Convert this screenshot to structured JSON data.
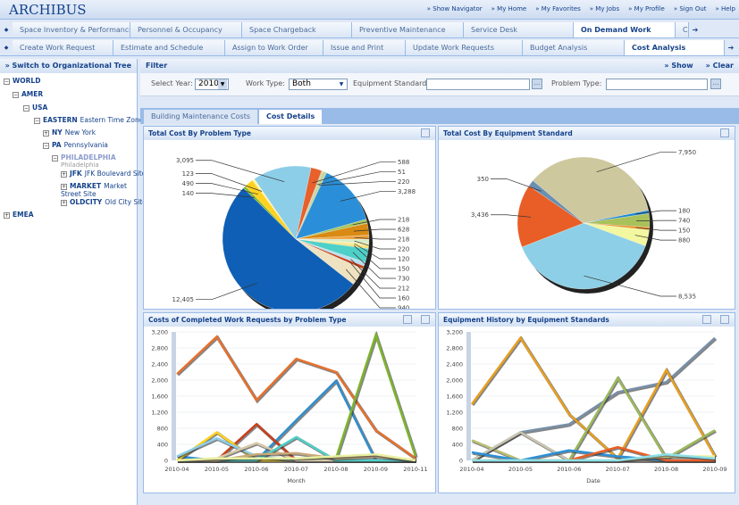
{
  "header": {
    "logo": "ARCHIBUS",
    "links": [
      "» Show Navigator",
      "» My Home",
      "» My Favorites",
      "» My Jobs",
      "» My Profile",
      "» Sign Out",
      "» Help"
    ]
  },
  "nav1": {
    "tabs": [
      "Space Inventory & Performance",
      "Personnel & Occupancy",
      "Space Chargeback",
      "Preventive Maintenance",
      "Service Desk",
      "On Demand Work",
      "C"
    ],
    "active": "On Demand Work"
  },
  "nav2": {
    "tabs": [
      "Create Work Request",
      "Estimate and Schedule",
      "Assign to Work Order",
      "Issue and Print",
      "Update Work Requests",
      "Budget Analysis",
      "Cost Analysis"
    ],
    "active": "Cost Analysis"
  },
  "tree": {
    "switch_label": "» Switch to Organizational Tree",
    "nodes": [
      {
        "code": "WORLD",
        "name": ""
      },
      {
        "code": "AMER",
        "name": ""
      },
      {
        "code": "USA",
        "name": ""
      },
      {
        "code": "EASTERN",
        "name": "Eastern Time Zone"
      },
      {
        "code": "NY",
        "name": "New York"
      },
      {
        "code": "PA",
        "name": "Pennsylvania"
      },
      {
        "code": "PHILADELPHIA",
        "name": "Philadelphia"
      },
      {
        "code": "JFK",
        "name": "JFK Boulevard Site"
      },
      {
        "code": "MARKET",
        "name": "Market Street Site"
      },
      {
        "code": "OLDCITY",
        "name": "Old City Site"
      },
      {
        "code": "EMEA",
        "name": ""
      }
    ]
  },
  "filter": {
    "title": "Filter",
    "show": "» Show",
    "clear": "» Clear",
    "year_label": "Select Year:",
    "year": "2010",
    "worktype_label": "Work Type:",
    "worktype": "Both",
    "equip_label": "Equipment Standard:",
    "equip_value": "",
    "problem_label": "Problem Type:",
    "problem_value": ""
  },
  "subtabs": [
    "Building Maintenance Costs",
    "Cost Details"
  ],
  "active_subtab": "Cost Details",
  "chart_data": [
    {
      "type": "pie",
      "title": "Total Cost By Problem Type",
      "values": [
        588,
        51,
        220,
        3288,
        218,
        628,
        218,
        220,
        120,
        150,
        730,
        212,
        160,
        940,
        12405,
        140,
        490,
        123,
        3095
      ],
      "colors": [
        "#e8602c",
        "#c9c08a",
        "#c4d7a0",
        "#2a8fd8",
        "#a7c55a",
        "#d98a12",
        "#f0a13a",
        "#d8ecc8",
        "#fff29a",
        "#f6e27a",
        "#4dd0c8",
        "#b8e0f0",
        "#c8401c",
        "#efe2c0",
        "#0e5fb5",
        "#7cb82f",
        "#ffd21f",
        "#fff7b0",
        "#8ccde8"
      ]
    },
    {
      "type": "pie",
      "title": "Total Cost By Equipment Standard",
      "values": [
        7950,
        180,
        740,
        150,
        880,
        8535,
        3436,
        350
      ],
      "colors": [
        "#cdc89e",
        "#1e88d0",
        "#a9c15a",
        "#f08a1a",
        "#f2f7a0",
        "#8dcfe6",
        "#e85e26",
        "#6a8fb0"
      ]
    },
    {
      "type": "line",
      "title": "Costs of Completed Work Requests by Problem Type",
      "xlabel": "Month",
      "categories": [
        "2010-04",
        "2010-05",
        "2010-06",
        "2010-07",
        "2010-08",
        "2010-09",
        "2010-11"
      ],
      "ylim": [
        0,
        3200
      ],
      "yticks": [
        0,
        400,
        800,
        1200,
        1600,
        2000,
        2400,
        2800,
        3200
      ],
      "series": [
        {
          "color": "#e8702c",
          "values": [
            2150,
            3080,
            1500,
            2530,
            2200,
            750,
            50
          ]
        },
        {
          "color": "#2f8fd0",
          "values": [
            100,
            0,
            0,
            1000,
            1980,
            0,
            0
          ]
        },
        {
          "color": "#7db52a",
          "values": [
            0,
            0,
            0,
            0,
            50,
            3120,
            100
          ]
        },
        {
          "color": "#c8401c",
          "values": [
            0,
            0,
            900,
            0,
            0,
            0,
            0
          ]
        },
        {
          "color": "#ffd21f",
          "values": [
            0,
            700,
            0,
            0,
            0,
            0,
            0
          ]
        },
        {
          "color": "#8ccde8",
          "values": [
            100,
            550,
            100,
            0,
            0,
            0,
            0
          ]
        },
        {
          "color": "#d8c8a8",
          "values": [
            0,
            50,
            430,
            0,
            0,
            0,
            0
          ]
        },
        {
          "color": "#4dd0c8",
          "values": [
            0,
            0,
            0,
            580,
            0,
            0,
            0
          ]
        },
        {
          "color": "#c8a878",
          "values": [
            0,
            0,
            150,
            180,
            50,
            100,
            0
          ]
        },
        {
          "color": "#e8f0a0",
          "values": [
            0,
            50,
            50,
            50,
            100,
            150,
            0
          ]
        }
      ]
    },
    {
      "type": "line",
      "title": "Equipment History by Equipment Standards",
      "xlabel": "Date",
      "categories": [
        "2010-04",
        "2010-05",
        "2010-06",
        "2010-07",
        "2010-08",
        "2010-09"
      ],
      "ylim": [
        0,
        3200
      ],
      "yticks": [
        0,
        400,
        800,
        1200,
        1600,
        2000,
        2400,
        2800,
        3200
      ],
      "series": [
        {
          "color": "#7890a8",
          "values": [
            0,
            700,
            900,
            1700,
            1950,
            3050
          ]
        },
        {
          "color": "#e8a020",
          "values": [
            1400,
            3050,
            1150,
            50,
            2250,
            100
          ]
        },
        {
          "color": "#9cba5a",
          "values": [
            0,
            0,
            0,
            2050,
            50,
            750
          ]
        },
        {
          "color": "#b8c070",
          "values": [
            500,
            0,
            0,
            0,
            0,
            0
          ]
        },
        {
          "color": "#c8c4b0",
          "values": [
            0,
            700,
            0,
            0,
            0,
            0
          ]
        },
        {
          "color": "#2a90d8",
          "values": [
            200,
            0,
            250,
            100,
            0,
            0
          ]
        },
        {
          "color": "#e85e26",
          "values": [
            0,
            0,
            0,
            330,
            0,
            0
          ]
        },
        {
          "color": "#f0f4a0",
          "values": [
            0,
            0,
            0,
            0,
            100,
            100
          ]
        },
        {
          "color": "#8ce0e8",
          "values": [
            0,
            0,
            0,
            0,
            150,
            50
          ]
        }
      ]
    }
  ]
}
